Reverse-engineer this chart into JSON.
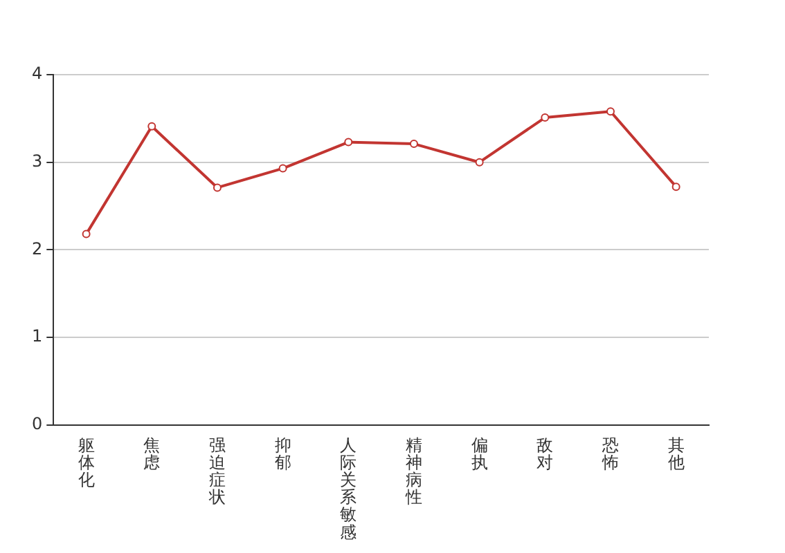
{
  "chart_data": {
    "type": "line",
    "categories": [
      "躯体化",
      "焦虑",
      "强迫症状",
      "抑郁",
      "人际关系敏感",
      "精神病性",
      "偏执",
      "敌对",
      "恐怖",
      "其他"
    ],
    "series": [
      {
        "color": "#c23531",
        "values": [
          2.18,
          3.41,
          2.71,
          2.93,
          3.23,
          3.21,
          3.0,
          3.51,
          3.58,
          2.72
        ]
      }
    ],
    "ylim": [
      0,
      4
    ],
    "yticks": [
      0,
      1,
      2,
      3,
      4
    ],
    "grid": "y",
    "legend": false,
    "marker": "circle",
    "line_style": "solid"
  }
}
